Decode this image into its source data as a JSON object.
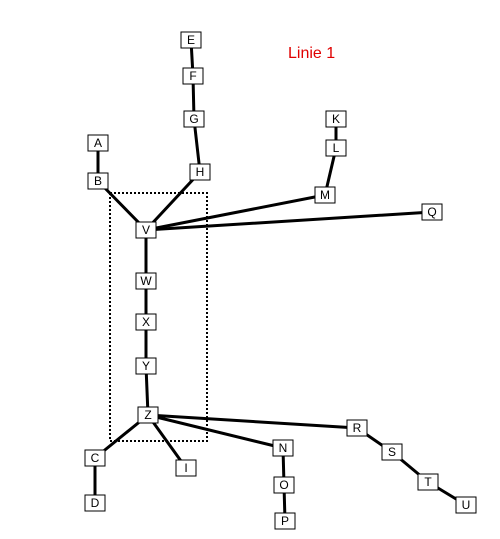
{
  "title": {
    "text": "Linie 1",
    "color": "#e00000"
  },
  "nodes": [
    {
      "id": "E",
      "label": "E"
    },
    {
      "id": "F",
      "label": "F"
    },
    {
      "id": "G",
      "label": "G"
    },
    {
      "id": "H",
      "label": "H"
    },
    {
      "id": "A",
      "label": "A"
    },
    {
      "id": "B",
      "label": "B"
    },
    {
      "id": "K",
      "label": "K"
    },
    {
      "id": "L",
      "label": "L"
    },
    {
      "id": "M",
      "label": "M"
    },
    {
      "id": "Q",
      "label": "Q"
    },
    {
      "id": "V",
      "label": "V"
    },
    {
      "id": "W",
      "label": "W"
    },
    {
      "id": "X",
      "label": "X"
    },
    {
      "id": "Y",
      "label": "Y"
    },
    {
      "id": "Z",
      "label": "Z"
    },
    {
      "id": "C",
      "label": "C"
    },
    {
      "id": "D",
      "label": "D"
    },
    {
      "id": "I",
      "label": "I"
    },
    {
      "id": "N",
      "label": "N"
    },
    {
      "id": "O",
      "label": "O"
    },
    {
      "id": "P",
      "label": "P"
    },
    {
      "id": "R",
      "label": "R"
    },
    {
      "id": "S",
      "label": "S"
    },
    {
      "id": "T",
      "label": "T"
    },
    {
      "id": "U",
      "label": "U"
    }
  ],
  "edges": [
    [
      "E",
      "F"
    ],
    [
      "F",
      "G"
    ],
    [
      "G",
      "H"
    ],
    [
      "H",
      "V"
    ],
    [
      "A",
      "B"
    ],
    [
      "B",
      "V"
    ],
    [
      "K",
      "L"
    ],
    [
      "L",
      "M"
    ],
    [
      "M",
      "V"
    ],
    [
      "V",
      "Q"
    ],
    [
      "V",
      "W"
    ],
    [
      "W",
      "X"
    ],
    [
      "X",
      "Y"
    ],
    [
      "Y",
      "Z"
    ],
    [
      "Z",
      "C"
    ],
    [
      "C",
      "D"
    ],
    [
      "Z",
      "I"
    ],
    [
      "Z",
      "N"
    ],
    [
      "N",
      "O"
    ],
    [
      "O",
      "P"
    ],
    [
      "Z",
      "R"
    ],
    [
      "R",
      "S"
    ],
    [
      "S",
      "T"
    ],
    [
      "T",
      "U"
    ]
  ]
}
